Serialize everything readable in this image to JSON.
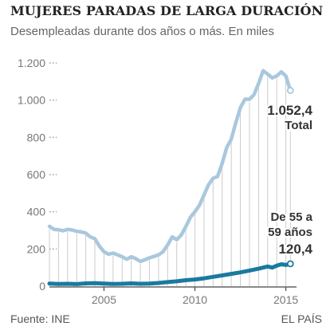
{
  "header": {
    "title": "MUJERES PARADAS DE LARGA DURACIÓN",
    "subtitle": "Desempleadas durante dos años o más. En miles"
  },
  "footer": {
    "source": "Fuente: INE",
    "brand": "EL PAÍS"
  },
  "colors": {
    "total_series": "#a9c8dd",
    "age_series": "#1a7a9e",
    "drop_lines": "#cccccc",
    "axis_dots": "#999999",
    "text": "#333333"
  },
  "annotations": {
    "total_value": "1.052,4",
    "total_label": "Total",
    "age_label_line1": "De 55 a",
    "age_label_line2": "59 años",
    "age_value": "120,4"
  },
  "chart_data": {
    "type": "line",
    "title": "MUJERES PARADAS DE LARGA DURACIÓN",
    "subtitle": "Desempleadas durante dos años o más. En miles",
    "xlabel": "",
    "ylabel": "",
    "xlim": [
      2002,
      2015.5
    ],
    "ylim": [
      0,
      1200
    ],
    "x_ticks": [
      2005,
      2010,
      2015
    ],
    "x_tick_labels": [
      "2005",
      "2010",
      "2015"
    ],
    "y_ticks": [
      0,
      200,
      400,
      600,
      800,
      1000,
      1200
    ],
    "y_tick_labels": [
      "0",
      "200",
      "400",
      "600",
      "800",
      "1.000",
      "1.200"
    ],
    "grid": "dotted horizontal marks at y ticks; vertical drop lines under total series each quarter",
    "series": [
      {
        "name": "Total",
        "x": [
          2002.0,
          2002.25,
          2002.5,
          2002.75,
          2003.0,
          2003.25,
          2003.5,
          2003.75,
          2004.0,
          2004.25,
          2004.5,
          2004.75,
          2005.0,
          2005.25,
          2005.5,
          2005.75,
          2006.0,
          2006.25,
          2006.5,
          2006.75,
          2007.0,
          2007.25,
          2007.5,
          2007.75,
          2008.0,
          2008.25,
          2008.5,
          2008.75,
          2009.0,
          2009.25,
          2009.5,
          2009.75,
          2010.0,
          2010.25,
          2010.5,
          2010.75,
          2011.0,
          2011.25,
          2011.5,
          2011.75,
          2012.0,
          2012.25,
          2012.5,
          2012.75,
          2013.0,
          2013.25,
          2013.5,
          2013.75,
          2014.0,
          2014.25,
          2014.5,
          2014.75,
          2015.0,
          2015.25
        ],
        "values": [
          322,
          305,
          303,
          298,
          305,
          302,
          295,
          292,
          285,
          265,
          255,
          215,
          185,
          172,
          178,
          168,
          158,
          145,
          158,
          148,
          133,
          142,
          152,
          160,
          168,
          185,
          222,
          265,
          250,
          275,
          320,
          370,
          400,
          435,
          490,
          545,
          580,
          590,
          660,
          745,
          790,
          880,
          960,
          1005,
          1005,
          1030,
          1090,
          1158,
          1140,
          1120,
          1130,
          1152,
          1130,
          1052.4
        ]
      },
      {
        "name": "De 55 a 59 años",
        "x": [
          2002.0,
          2002.5,
          2003.0,
          2003.5,
          2004.0,
          2004.5,
          2005.0,
          2005.5,
          2006.0,
          2006.5,
          2007.0,
          2007.5,
          2008.0,
          2008.5,
          2009.0,
          2009.5,
          2010.0,
          2010.5,
          2011.0,
          2011.5,
          2012.0,
          2012.5,
          2013.0,
          2013.5,
          2014.0,
          2014.25,
          2014.5,
          2014.75,
          2015.0,
          2015.25
        ],
        "values": [
          14,
          12,
          13,
          11,
          15,
          16,
          14,
          12,
          13,
          15,
          13,
          14,
          17,
          22,
          26,
          32,
          36,
          42,
          50,
          58,
          66,
          74,
          84,
          94,
          106,
          100,
          110,
          118,
          114,
          120.4
        ]
      }
    ]
  }
}
